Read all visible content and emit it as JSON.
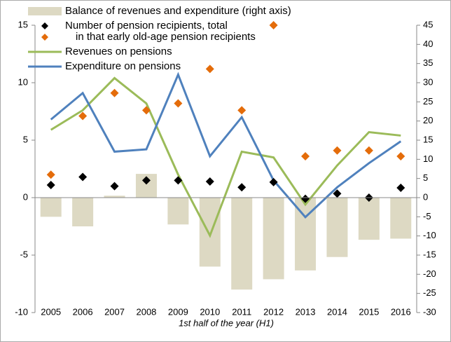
{
  "chart_data": {
    "type": "combo",
    "x_label": "1st half of the year (H1)",
    "categories": [
      "2005",
      "2006",
      "2007",
      "2008",
      "2009",
      "2010",
      "2011",
      "2012",
      "2013",
      "2014",
      "2015",
      "2016"
    ],
    "series": [
      {
        "name": "Balance of revenues and expenditure (right axis)",
        "kind": "bar",
        "axis": "y2",
        "color": "#ddd9c3",
        "values": [
          -5,
          -7.5,
          0.5,
          6.2,
          -7,
          -18,
          -24,
          -21.3,
          -19,
          -15.5,
          -11,
          -10.7
        ]
      },
      {
        "name": "Number of pension recipients, total",
        "kind": "marker",
        "color": "#000000",
        "values": [
          1.1,
          1.8,
          1.0,
          1.5,
          1.5,
          1.4,
          0.9,
          1.35,
          -0.1,
          0.35,
          0,
          0.85
        ]
      },
      {
        "name": "in that early old-age pension recipients",
        "kind": "marker",
        "color": "#e46c0a",
        "values": [
          2.0,
          7.1,
          9.1,
          7.6,
          8.2,
          11.2,
          7.6,
          15.0,
          3.6,
          4.1,
          4.1,
          3.6
        ]
      },
      {
        "name": "Revenues on pensions",
        "kind": "line",
        "color": "#9bbb59",
        "values": [
          5.9,
          7.6,
          10.4,
          8.2,
          2.0,
          -3.3,
          4.0,
          3.5,
          -0.6,
          2.8,
          5.7,
          5.4
        ]
      },
      {
        "name": "Expenditure on pensions",
        "kind": "line",
        "color": "#4f81bd",
        "values": [
          6.8,
          9.1,
          4.0,
          4.2,
          10.7,
          3.6,
          7.0,
          1.5,
          -1.7,
          0.9,
          3.0,
          4.9
        ]
      }
    ],
    "ylim": [
      -10,
      15
    ],
    "yticks": [
      -10,
      -5,
      0,
      5,
      10,
      15
    ],
    "y2lim": [
      -30,
      45
    ],
    "y2ticks": [
      -30,
      -25,
      -20,
      -15,
      -10,
      -5,
      0,
      5,
      10,
      15,
      20,
      25,
      30,
      35,
      40,
      45
    ]
  }
}
